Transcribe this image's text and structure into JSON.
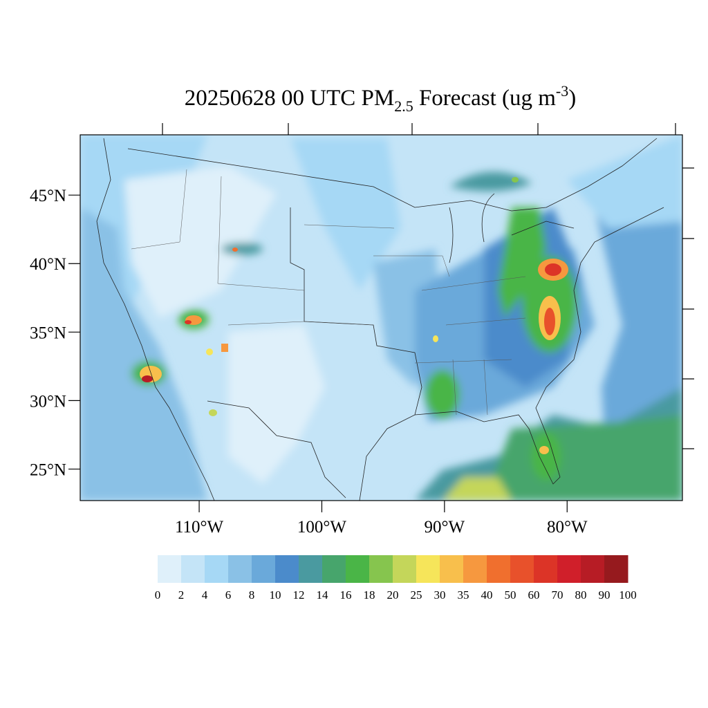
{
  "map": {
    "title": {
      "main": "20250628 00 UTC PM",
      "sub": "2.5",
      "mid": " Forecast (ug m",
      "sup": "-3",
      "end": ")"
    },
    "lat_range": [
      22.7,
      49.4
    ],
    "lon_range": [
      -119.7,
      -70.6
    ],
    "lat_ticks": [
      {
        "value": 45,
        "label": "45°N"
      },
      {
        "value": 40,
        "label": "40°N"
      },
      {
        "value": 35,
        "label": "35°N"
      },
      {
        "value": 30,
        "label": "30°N"
      },
      {
        "value": 25,
        "label": "25°N"
      }
    ],
    "lon_ticks": [
      {
        "value": -110,
        "label": "110°W"
      },
      {
        "value": -100,
        "label": "100°W"
      },
      {
        "value": -90,
        "label": "90°W"
      },
      {
        "value": -80,
        "label": "80°W"
      }
    ],
    "colorbar": {
      "levels": [
        0,
        2,
        4,
        6,
        8,
        10,
        12,
        14,
        16,
        18,
        20,
        25,
        30,
        35,
        40,
        50,
        60,
        70,
        80,
        90,
        100
      ],
      "colors": [
        "#dff0fa",
        "#c4e4f7",
        "#a6d8f5",
        "#8ac1e6",
        "#6aa9da",
        "#4b8bcb",
        "#4a9aa0",
        "#47a56c",
        "#4ab547",
        "#86c54e",
        "#c4d65a",
        "#f6e55a",
        "#f8bf4c",
        "#f6983f",
        "#f06f2e",
        "#e8512b",
        "#dc3427",
        "#d01f2a",
        "#b71c25",
        "#961a1e"
      ]
    }
  }
}
